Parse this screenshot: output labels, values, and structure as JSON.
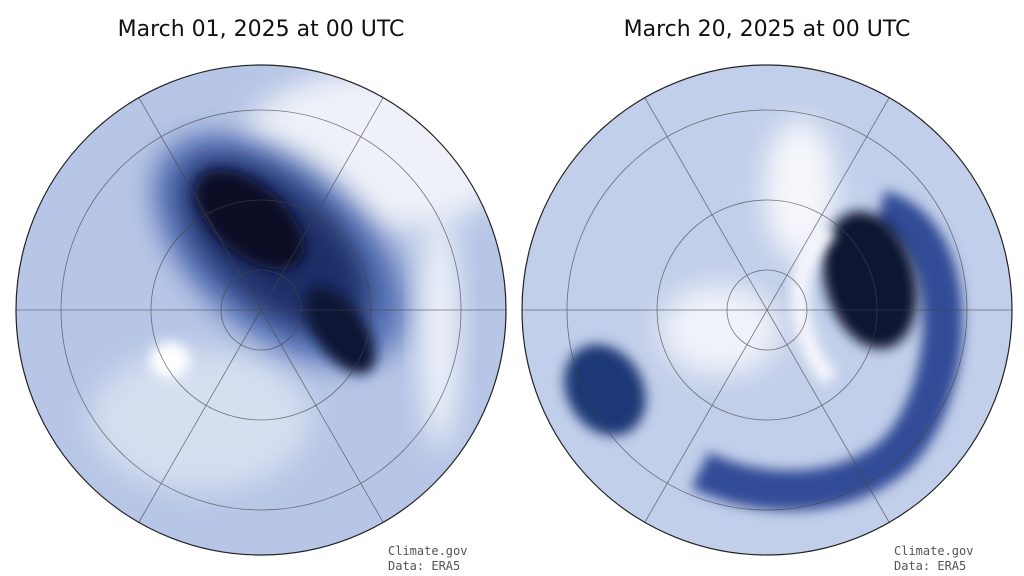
{
  "maps": [
    {
      "title": "March 01, 2025 at 00 UTC",
      "credit": [
        "Climate.gov",
        "Data: ERA5"
      ]
    },
    {
      "title": "March 20, 2025 at 00 UTC",
      "credit": [
        "Climate.gov",
        "Data: ERA5"
      ]
    }
  ]
}
